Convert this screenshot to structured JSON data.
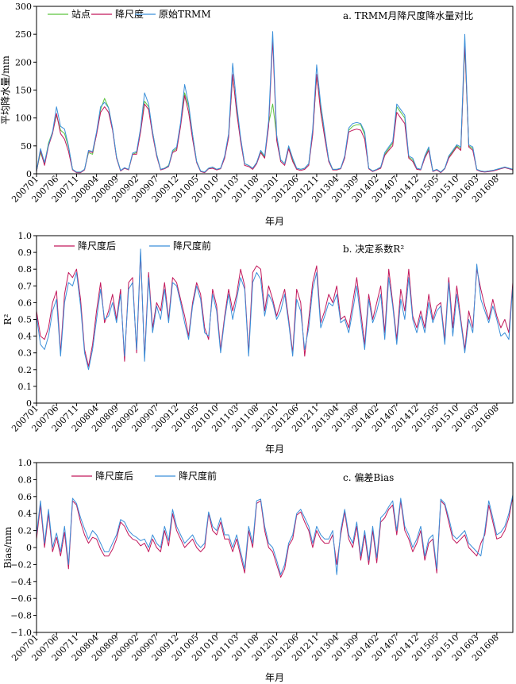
{
  "chart_data": [
    {
      "type": "line",
      "title": "a. TRMM月降尺度降水量对比",
      "xlabel": "年月",
      "ylabel": "平均降水量/mm",
      "ylim": [
        0,
        300
      ],
      "yticks": [
        0,
        50,
        100,
        150,
        200,
        250,
        300
      ],
      "x_tick_labels": [
        "200701",
        "200706",
        "200711",
        "200804",
        "200809",
        "200902",
        "200907",
        "200912",
        "201005",
        "201010",
        "201103",
        "201108",
        "201201",
        "201206",
        "201211",
        "201304",
        "201309",
        "201402",
        "201407",
        "201412",
        "201505",
        "201510",
        "201603",
        "201608"
      ],
      "x_tick_months": [
        0,
        5,
        10,
        15,
        20,
        25,
        30,
        35,
        40,
        45,
        50,
        55,
        60,
        65,
        70,
        75,
        80,
        85,
        90,
        95,
        100,
        105,
        110,
        115
      ],
      "x_count": 120,
      "legend_position": "top-left",
      "series": [
        {
          "name": "站点",
          "color": "#5cc33f",
          "values": [
            5,
            38,
            18,
            55,
            75,
            105,
            78,
            72,
            48,
            8,
            3,
            3,
            8,
            38,
            35,
            72,
            115,
            135,
            118,
            80,
            30,
            6,
            10,
            8,
            35,
            38,
            80,
            130,
            120,
            75,
            35,
            8,
            10,
            15,
            40,
            45,
            90,
            145,
            120,
            70,
            22,
            5,
            3,
            10,
            12,
            8,
            10,
            30,
            70,
            175,
            115,
            62,
            18,
            15,
            10,
            20,
            40,
            30,
            90,
            125,
            68,
            25,
            18,
            48,
            25,
            10,
            8,
            10,
            18,
            75,
            175,
            120,
            72,
            25,
            8,
            8,
            10,
            30,
            78,
            85,
            88,
            88,
            70,
            10,
            5,
            8,
            12,
            35,
            45,
            55,
            120,
            110,
            100,
            30,
            25,
            10,
            8,
            30,
            45,
            5,
            8,
            3,
            10,
            30,
            40,
            50,
            45,
            230,
            50,
            45,
            8,
            5,
            4,
            5,
            6,
            8,
            10,
            12,
            10,
            8
          ]
        },
        {
          "name": "降尺度",
          "color": "#c2185b",
          "values": [
            4,
            42,
            15,
            50,
            72,
            108,
            72,
            62,
            40,
            7,
            2,
            2,
            7,
            40,
            38,
            70,
            110,
            120,
            110,
            78,
            28,
            5,
            10,
            7,
            35,
            35,
            75,
            125,
            115,
            70,
            32,
            7,
            9,
            13,
            38,
            42,
            85,
            140,
            110,
            62,
            20,
            4,
            2,
            9,
            10,
            7,
            9,
            28,
            65,
            178,
            110,
            58,
            15,
            13,
            8,
            18,
            38,
            28,
            85,
            240,
            60,
            22,
            15,
            45,
            22,
            8,
            6,
            8,
            15,
            70,
            178,
            110,
            65,
            22,
            7,
            7,
            9,
            28,
            75,
            78,
            80,
            78,
            62,
            9,
            4,
            7,
            10,
            33,
            42,
            50,
            110,
            100,
            90,
            28,
            22,
            8,
            7,
            28,
            42,
            4,
            7,
            2,
            9,
            28,
            38,
            48,
            42,
            235,
            48,
            42,
            7,
            4,
            3,
            4,
            5,
            7,
            9,
            11,
            9,
            7
          ]
        },
        {
          "name": "原始TRMM",
          "color": "#3a8fd9",
          "values": [
            5,
            45,
            20,
            52,
            75,
            120,
            85,
            80,
            50,
            8,
            3,
            3,
            8,
            42,
            40,
            75,
            120,
            128,
            118,
            82,
            30,
            6,
            11,
            8,
            37,
            40,
            82,
            145,
            125,
            75,
            35,
            8,
            10,
            14,
            42,
            48,
            92,
            160,
            125,
            70,
            22,
            5,
            3,
            10,
            12,
            8,
            10,
            32,
            72,
            198,
            125,
            65,
            18,
            15,
            10,
            20,
            42,
            32,
            95,
            255,
            70,
            25,
            18,
            50,
            28,
            10,
            8,
            10,
            18,
            80,
            195,
            125,
            75,
            25,
            8,
            8,
            10,
            32,
            82,
            90,
            92,
            90,
            75,
            10,
            5,
            8,
            12,
            38,
            48,
            58,
            125,
            115,
            105,
            32,
            28,
            10,
            8,
            32,
            48,
            5,
            8,
            3,
            10,
            32,
            42,
            52,
            48,
            250,
            52,
            48,
            8,
            5,
            4,
            5,
            6,
            8,
            10,
            12,
            10,
            8
          ]
        }
      ]
    },
    {
      "type": "line",
      "title": "b. 决定系数R²",
      "xlabel": "年月",
      "ylabel": "R²",
      "ylim": [
        0,
        1.0
      ],
      "yticks": [
        0,
        0.1,
        0.2,
        0.3,
        0.4,
        0.5,
        0.6,
        0.7,
        0.8,
        0.9,
        1.0
      ],
      "x_tick_labels": [
        "200701",
        "200706",
        "200711",
        "200804",
        "200809",
        "200902",
        "200907",
        "200912",
        "201005",
        "201010",
        "201103",
        "201108",
        "201201",
        "201206",
        "201211",
        "201304",
        "201309",
        "201402",
        "201407",
        "201412",
        "201505",
        "201510",
        "201603",
        "201608"
      ],
      "x_tick_months": [
        0,
        5,
        10,
        15,
        20,
        25,
        30,
        35,
        40,
        45,
        50,
        55,
        60,
        65,
        70,
        75,
        80,
        85,
        90,
        95,
        100,
        105,
        110,
        115
      ],
      "x_count": 120,
      "legend_position": "top-left",
      "series": [
        {
          "name": "降尺度后",
          "color": "#c2185b",
          "values": [
            0.55,
            0.4,
            0.38,
            0.45,
            0.6,
            0.67,
            0.3,
            0.65,
            0.78,
            0.75,
            0.8,
            0.62,
            0.32,
            0.22,
            0.35,
            0.55,
            0.72,
            0.48,
            0.55,
            0.65,
            0.5,
            0.68,
            0.25,
            0.72,
            0.75,
            0.3,
            0.9,
            0.27,
            0.78,
            0.45,
            0.6,
            0.55,
            0.72,
            0.5,
            0.75,
            0.72,
            0.62,
            0.52,
            0.4,
            0.6,
            0.72,
            0.65,
            0.45,
            0.38,
            0.68,
            0.58,
            0.32,
            0.52,
            0.68,
            0.55,
            0.65,
            0.8,
            0.7,
            0.3,
            0.78,
            0.82,
            0.8,
            0.55,
            0.7,
            0.62,
            0.52,
            0.6,
            0.68,
            0.5,
            0.3,
            0.68,
            0.6,
            0.28,
            0.5,
            0.72,
            0.82,
            0.48,
            0.55,
            0.65,
            0.6,
            0.7,
            0.5,
            0.52,
            0.45,
            0.6,
            0.75,
            0.55,
            0.35,
            0.65,
            0.5,
            0.6,
            0.7,
            0.42,
            0.8,
            0.6,
            0.38,
            0.68,
            0.55,
            0.8,
            0.52,
            0.45,
            0.55,
            0.45,
            0.65,
            0.5,
            0.58,
            0.6,
            0.38,
            0.75,
            0.45,
            0.7,
            0.5,
            0.32,
            0.55,
            0.45,
            0.8,
            0.68,
            0.58,
            0.5,
            0.62,
            0.52,
            0.45,
            0.5,
            0.42,
            0.72
          ]
        },
        {
          "name": "降尺度前",
          "color": "#3a8fd9",
          "values": [
            0.52,
            0.35,
            0.32,
            0.4,
            0.55,
            0.62,
            0.28,
            0.6,
            0.72,
            0.7,
            0.78,
            0.58,
            0.3,
            0.2,
            0.32,
            0.5,
            0.68,
            0.5,
            0.52,
            0.6,
            0.48,
            0.65,
            0.28,
            0.68,
            0.72,
            0.32,
            0.92,
            0.25,
            0.75,
            0.42,
            0.58,
            0.5,
            0.68,
            0.48,
            0.72,
            0.7,
            0.6,
            0.48,
            0.38,
            0.58,
            0.7,
            0.62,
            0.42,
            0.4,
            0.65,
            0.55,
            0.3,
            0.5,
            0.65,
            0.5,
            0.62,
            0.75,
            0.68,
            0.28,
            0.72,
            0.78,
            0.74,
            0.52,
            0.65,
            0.6,
            0.5,
            0.55,
            0.65,
            0.48,
            0.28,
            0.62,
            0.55,
            0.32,
            0.45,
            0.68,
            0.78,
            0.45,
            0.52,
            0.6,
            0.58,
            0.65,
            0.48,
            0.5,
            0.42,
            0.55,
            0.7,
            0.5,
            0.32,
            0.62,
            0.48,
            0.55,
            0.65,
            0.38,
            0.75,
            0.58,
            0.35,
            0.62,
            0.5,
            0.75,
            0.5,
            0.42,
            0.52,
            0.42,
            0.6,
            0.48,
            0.55,
            0.58,
            0.35,
            0.72,
            0.4,
            0.65,
            0.48,
            0.3,
            0.5,
            0.42,
            0.83,
            0.62,
            0.55,
            0.48,
            0.58,
            0.5,
            0.4,
            0.42,
            0.38,
            0.7
          ]
        }
      ]
    },
    {
      "type": "line",
      "title": "c. 偏差Bias",
      "xlabel": "年月",
      "ylabel": "Bias/mm",
      "ylim": [
        -1.0,
        1.0
      ],
      "yticks": [
        -1.0,
        -0.8,
        -0.6,
        -0.4,
        -0.2,
        0,
        0.2,
        0.4,
        0.6,
        0.8,
        1.0
      ],
      "x_tick_labels": [
        "200701",
        "200706",
        "200711",
        "200804",
        "200809",
        "200902",
        "200907",
        "200912",
        "201005",
        "201010",
        "201103",
        "201108",
        "201201",
        "201206",
        "201211",
        "201304",
        "201309",
        "201402",
        "201407",
        "201412",
        "201505",
        "201510",
        "201603",
        "201608"
      ],
      "x_tick_months": [
        0,
        5,
        10,
        15,
        20,
        25,
        30,
        35,
        40,
        45,
        50,
        55,
        60,
        65,
        70,
        75,
        80,
        85,
        90,
        95,
        100,
        105,
        110,
        115
      ],
      "x_count": 120,
      "legend_position": "top-left",
      "series": [
        {
          "name": "降尺度后",
          "color": "#c2185b",
          "values": [
            0.1,
            0.5,
            0.0,
            0.4,
            -0.05,
            0.12,
            -0.1,
            0.18,
            -0.25,
            0.55,
            0.5,
            0.3,
            0.15,
            0.05,
            0.12,
            0.1,
            -0.02,
            -0.1,
            -0.1,
            -0.02,
            0.1,
            0.3,
            0.25,
            0.15,
            0.1,
            0.08,
            0.02,
            0.05,
            -0.05,
            0.1,
            0.0,
            -0.05,
            0.2,
            0.02,
            0.4,
            0.2,
            0.1,
            0.0,
            0.05,
            0.1,
            0.0,
            -0.05,
            0.0,
            0.4,
            0.2,
            0.15,
            0.3,
            0.1,
            0.1,
            -0.05,
            0.1,
            -0.1,
            -0.3,
            0.2,
            0.0,
            0.52,
            0.55,
            0.2,
            0.0,
            -0.05,
            -0.2,
            -0.35,
            -0.25,
            0.02,
            0.1,
            0.38,
            0.42,
            0.3,
            0.2,
            0.0,
            0.2,
            0.1,
            0.05,
            0.05,
            0.15,
            -0.2,
            0.15,
            0.42,
            0.1,
            0.0,
            0.25,
            -0.15,
            0.15,
            -0.2,
            0.2,
            -0.18,
            0.3,
            0.35,
            0.45,
            0.5,
            0.15,
            0.55,
            0.2,
            0.1,
            -0.05,
            0.05,
            0.2,
            -0.15,
            0.05,
            0.1,
            -0.3,
            0.55,
            0.5,
            0.3,
            0.1,
            0.05,
            0.1,
            0.15,
            0.0,
            -0.05,
            -0.1,
            0.05,
            0.15,
            0.5,
            0.3,
            0.1,
            0.12,
            0.2,
            0.35,
            0.6
          ]
        },
        {
          "name": "降尺度前",
          "color": "#3a8fd9",
          "values": [
            0.15,
            0.55,
            0.05,
            0.45,
            0.0,
            0.17,
            -0.05,
            0.25,
            -0.2,
            0.58,
            0.52,
            0.35,
            0.22,
            0.1,
            0.2,
            0.15,
            0.05,
            -0.05,
            -0.05,
            0.05,
            0.15,
            0.33,
            0.3,
            0.2,
            0.15,
            0.12,
            0.08,
            0.1,
            0.0,
            0.15,
            0.05,
            0.0,
            0.25,
            0.08,
            0.45,
            0.25,
            0.15,
            0.05,
            0.1,
            0.15,
            0.05,
            0.0,
            0.05,
            0.42,
            0.25,
            0.2,
            0.35,
            0.15,
            0.15,
            0.0,
            0.15,
            -0.05,
            -0.25,
            0.25,
            0.05,
            0.55,
            0.57,
            0.25,
            0.05,
            0.0,
            -0.15,
            -0.32,
            -0.2,
            0.05,
            0.15,
            0.4,
            0.45,
            0.35,
            0.25,
            0.05,
            0.25,
            0.15,
            0.1,
            0.1,
            0.2,
            -0.32,
            0.2,
            0.45,
            0.15,
            0.05,
            0.3,
            -0.1,
            0.2,
            -0.15,
            0.25,
            -0.12,
            0.35,
            0.4,
            0.48,
            0.55,
            0.2,
            0.58,
            0.25,
            0.15,
            0.0,
            0.1,
            0.25,
            -0.1,
            0.1,
            0.15,
            -0.25,
            0.57,
            0.52,
            0.35,
            0.15,
            0.1,
            0.15,
            0.2,
            0.05,
            0.0,
            -0.05,
            -0.1,
            0.2,
            0.55,
            0.35,
            0.15,
            0.18,
            0.25,
            0.4,
            0.62
          ]
        }
      ]
    }
  ]
}
